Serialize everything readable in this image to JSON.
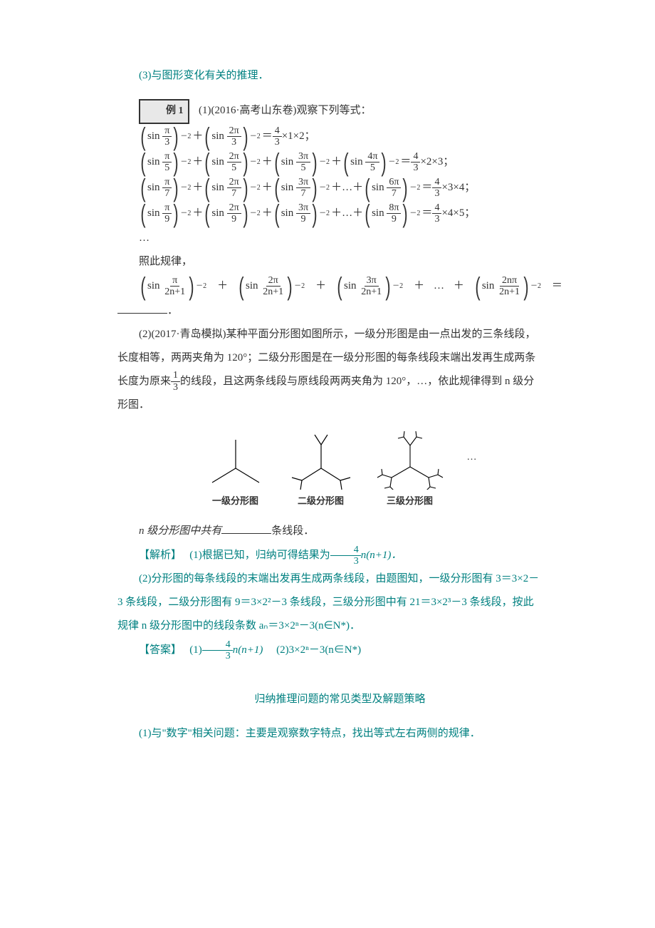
{
  "colors": {
    "accent": "#008080",
    "text": "#333333",
    "bg": "#ffffff"
  },
  "line1": "(3)与图形变化有关的推理．",
  "example": {
    "label": "例 1",
    "part1_src": "(1)(2016·高考山东卷)观察下列等式："
  },
  "equations": {
    "sin": "sin",
    "eq_frac_num": "4",
    "eq_frac_den": "3",
    "rows": [
      {
        "denom": "3",
        "nums": [
          "π",
          "2π"
        ],
        "dots": false,
        "last": null,
        "rhs": "×1×2；"
      },
      {
        "denom": "5",
        "nums": [
          "π",
          "2π",
          "3π",
          "4π"
        ],
        "dots": false,
        "last": null,
        "rhs": "×2×3；"
      },
      {
        "denom": "7",
        "nums": [
          "π",
          "2π",
          "3π"
        ],
        "dots": true,
        "last": "6π",
        "rhs": "×3×4；"
      },
      {
        "denom": "9",
        "nums": [
          "π",
          "2π",
          "3π"
        ],
        "dots": true,
        "last": "8π",
        "rhs": "×4×5；"
      }
    ],
    "trailing_dots": "…",
    "rule_intro": "照此规律，",
    "general": {
      "denom": "2n+1",
      "nums": [
        "π",
        "2π",
        "3π"
      ],
      "dots": true,
      "last": "2nπ",
      "eq": "＝"
    }
  },
  "part2": {
    "line1": "(2)(2017·青岛模拟)某种平面分形图如图所示，一级分形图是由一点出发的三条线段，",
    "line2a": "长度相等，两两夹角为 120°；二级分形图是在一级分形图的每条线段末端出发再生成两条",
    "line3a": "长度为原来",
    "frac13_num": "1",
    "frac13_den": "3",
    "line3b": "的线段，且这两条线段与原线段两两夹角为 120°，…，依此规律得到 n 级分",
    "line4": "形图．",
    "fig_labels": [
      "一级分形图",
      "二级分形图",
      "三级分形图"
    ],
    "fig_ellipsis": "…",
    "caption_a": "n 级分形图中共有",
    "caption_b": "条线段．"
  },
  "solution": {
    "label": "【解析】",
    "s1a": "(1)根据已知，归纳可得结果为",
    "s1_frac_num": "4",
    "s1_frac_den": "3",
    "s1b": "n(n+1)．",
    "s2a": "(2)分形图的每条线段的末端出发再生成两条线段，由题图知，一级分形图有 3＝3×2－",
    "s2b": "3 条线段，二级分形图有 9＝3×2²－3 条线段，三级分形图中有 21＝3×2³－3 条线段，按此",
    "s2c": "规律 n 级分形图中的线段条数 aₙ＝3×2ⁿ－3(n∈N*)．"
  },
  "answer": {
    "label": "【答案】",
    "a1a": "(1)",
    "a1_frac_num": "4",
    "a1_frac_den": "3",
    "a1b": "n(n+1)",
    "a2": "(2)3×2ⁿ－3(n∈N*)"
  },
  "footer": {
    "heading": "归纳推理问题的常见类型及解题策略",
    "line": "(1)与\"数字\"相关问题：主要是观察数字特点，找出等式左右两侧的规律．"
  },
  "math_sup": "－2",
  "plus": "＋",
  "dots": "＋…＋"
}
